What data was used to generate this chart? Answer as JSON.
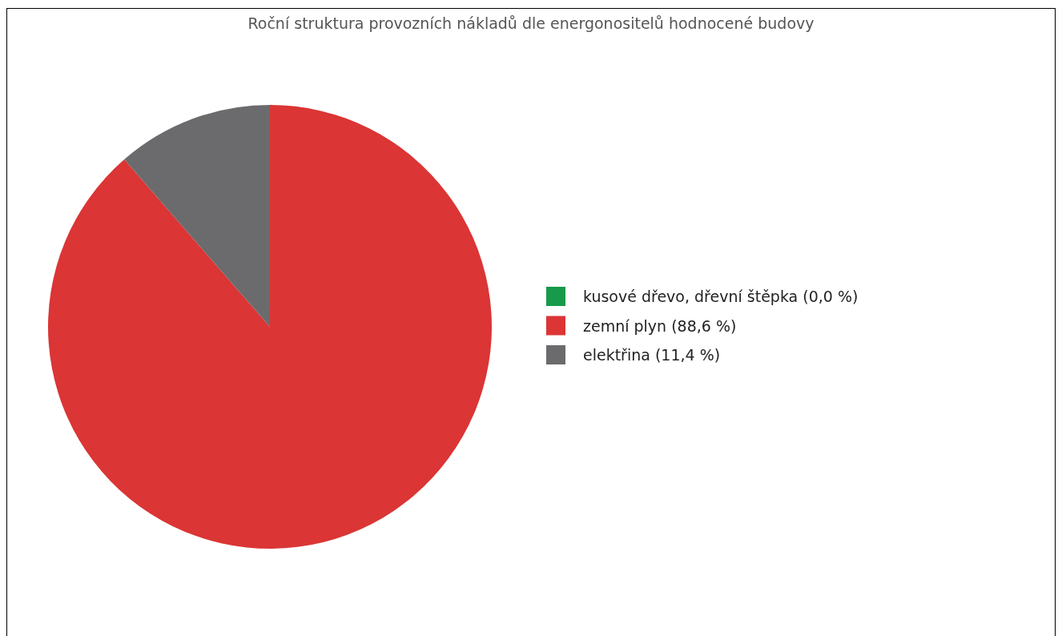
{
  "chart_data": {
    "type": "pie",
    "title": "Roční struktura provozních nákladů dle energonositelů hodnocené budovy",
    "categories": [
      "kusové dřevo, dřevní štěpka (0,0 %)",
      "zemní plyn (88,6 %)",
      "elektřina (11,4 %)"
    ],
    "values": [
      0.0,
      88.6,
      11.4
    ],
    "colors": [
      "#179a49",
      "#db3535",
      "#6b6b6d"
    ],
    "legend": "right"
  }
}
